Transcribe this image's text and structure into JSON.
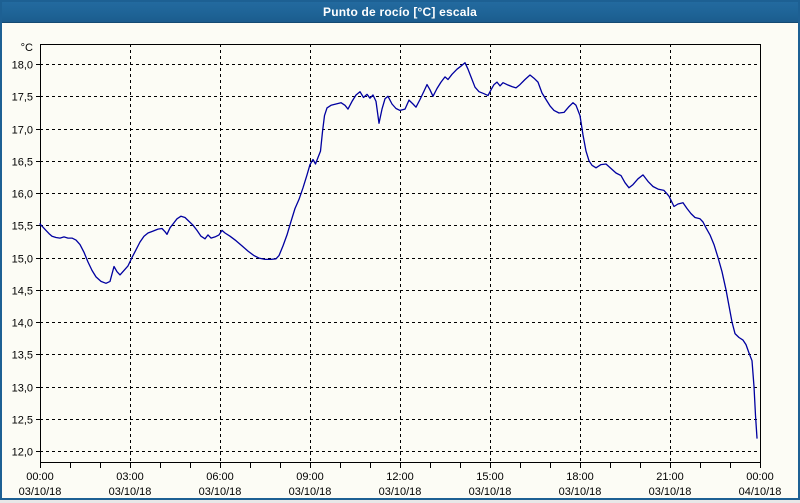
{
  "window": {
    "title": "Punto de rocío [°C] escala"
  },
  "colors": {
    "titlebar": "#1e6396",
    "frame": "#1d6093",
    "background": "#fcfcf5",
    "line": "#0000a0",
    "grid": "#000000",
    "text": "#000000"
  },
  "chart_data": {
    "type": "line",
    "title": "Punto de rocío [°C] escala",
    "ylabel": "°C",
    "ylim": [
      12.0,
      18.0
    ],
    "xlim_minutes": [
      0,
      1440
    ],
    "grid": true,
    "legend": "none",
    "yticks": [
      {
        "value": 18.0,
        "label": "18,0"
      },
      {
        "value": 17.5,
        "label": "17,5"
      },
      {
        "value": 17.0,
        "label": "17,0"
      },
      {
        "value": 16.5,
        "label": "16,5"
      },
      {
        "value": 16.0,
        "label": "16,0"
      },
      {
        "value": 15.5,
        "label": "15,5"
      },
      {
        "value": 15.0,
        "label": "15,0"
      },
      {
        "value": 14.5,
        "label": "14,5"
      },
      {
        "value": 14.0,
        "label": "14,0"
      },
      {
        "value": 13.5,
        "label": "13,5"
      },
      {
        "value": 13.0,
        "label": "13,0"
      },
      {
        "value": 12.5,
        "label": "12,5"
      },
      {
        "value": 12.0,
        "label": "12,0"
      }
    ],
    "xticks": [
      {
        "hour": 0,
        "time": "00:00",
        "date": "03/10/18"
      },
      {
        "hour": 3,
        "time": "03:00",
        "date": "03/10/18"
      },
      {
        "hour": 6,
        "time": "06:00",
        "date": "03/10/18"
      },
      {
        "hour": 9,
        "time": "09:00",
        "date": "03/10/18"
      },
      {
        "hour": 12,
        "time": "12:00",
        "date": "03/10/18"
      },
      {
        "hour": 15,
        "time": "15:00",
        "date": "03/10/18"
      },
      {
        "hour": 18,
        "time": "18:00",
        "date": "03/10/18"
      },
      {
        "hour": 21,
        "time": "21:00",
        "date": "03/10/18"
      },
      {
        "hour": 24,
        "time": "00:00",
        "date": "04/10/18"
      }
    ],
    "minor_tick_every_hours": 1,
    "series": [
      {
        "name": "Punto de rocío",
        "color": "#0000a0",
        "points": [
          [
            0,
            15.52
          ],
          [
            6,
            15.47
          ],
          [
            12,
            15.42
          ],
          [
            18,
            15.37
          ],
          [
            24,
            15.33
          ],
          [
            32,
            15.31
          ],
          [
            40,
            15.3
          ],
          [
            48,
            15.32
          ],
          [
            56,
            15.3
          ],
          [
            64,
            15.3
          ],
          [
            72,
            15.27
          ],
          [
            80,
            15.2
          ],
          [
            88,
            15.08
          ],
          [
            96,
            14.93
          ],
          [
            104,
            14.8
          ],
          [
            112,
            14.7
          ],
          [
            122,
            14.63
          ],
          [
            132,
            14.6
          ],
          [
            140,
            14.63
          ],
          [
            148,
            14.86
          ],
          [
            154,
            14.78
          ],
          [
            160,
            14.73
          ],
          [
            168,
            14.8
          ],
          [
            176,
            14.87
          ],
          [
            184,
            15.0
          ],
          [
            192,
            15.12
          ],
          [
            200,
            15.24
          ],
          [
            208,
            15.33
          ],
          [
            216,
            15.38
          ],
          [
            226,
            15.41
          ],
          [
            236,
            15.44
          ],
          [
            244,
            15.45
          ],
          [
            250,
            15.4
          ],
          [
            254,
            15.36
          ],
          [
            260,
            15.46
          ],
          [
            266,
            15.52
          ],
          [
            274,
            15.6
          ],
          [
            282,
            15.64
          ],
          [
            290,
            15.62
          ],
          [
            298,
            15.56
          ],
          [
            306,
            15.5
          ],
          [
            314,
            15.42
          ],
          [
            322,
            15.33
          ],
          [
            330,
            15.29
          ],
          [
            336,
            15.35
          ],
          [
            342,
            15.3
          ],
          [
            350,
            15.32
          ],
          [
            358,
            15.35
          ],
          [
            364,
            15.42
          ],
          [
            370,
            15.38
          ],
          [
            380,
            15.33
          ],
          [
            392,
            15.26
          ],
          [
            404,
            15.18
          ],
          [
            416,
            15.1
          ],
          [
            428,
            15.03
          ],
          [
            438,
            14.99
          ],
          [
            450,
            14.97
          ],
          [
            462,
            14.97
          ],
          [
            472,
            14.98
          ],
          [
            478,
            15.03
          ],
          [
            486,
            15.18
          ],
          [
            494,
            15.35
          ],
          [
            502,
            15.56
          ],
          [
            510,
            15.76
          ],
          [
            518,
            15.9
          ],
          [
            526,
            16.08
          ],
          [
            534,
            16.28
          ],
          [
            540,
            16.44
          ],
          [
            546,
            16.52
          ],
          [
            551,
            16.45
          ],
          [
            556,
            16.55
          ],
          [
            561,
            16.65
          ],
          [
            565,
            16.95
          ],
          [
            569,
            17.2
          ],
          [
            574,
            17.32
          ],
          [
            582,
            17.36
          ],
          [
            592,
            17.38
          ],
          [
            602,
            17.4
          ],
          [
            610,
            17.36
          ],
          [
            616,
            17.3
          ],
          [
            624,
            17.42
          ],
          [
            632,
            17.52
          ],
          [
            640,
            17.57
          ],
          [
            647,
            17.48
          ],
          [
            654,
            17.53
          ],
          [
            660,
            17.47
          ],
          [
            666,
            17.52
          ],
          [
            672,
            17.42
          ],
          [
            678,
            17.08
          ],
          [
            684,
            17.3
          ],
          [
            690,
            17.46
          ],
          [
            696,
            17.5
          ],
          [
            704,
            17.38
          ],
          [
            712,
            17.31
          ],
          [
            720,
            17.28
          ],
          [
            730,
            17.3
          ],
          [
            738,
            17.44
          ],
          [
            746,
            17.38
          ],
          [
            752,
            17.33
          ],
          [
            760,
            17.45
          ],
          [
            768,
            17.58
          ],
          [
            774,
            17.68
          ],
          [
            780,
            17.6
          ],
          [
            786,
            17.5
          ],
          [
            794,
            17.62
          ],
          [
            802,
            17.72
          ],
          [
            810,
            17.8
          ],
          [
            816,
            17.76
          ],
          [
            824,
            17.84
          ],
          [
            834,
            17.92
          ],
          [
            844,
            17.98
          ],
          [
            850,
            18.02
          ],
          [
            856,
            17.92
          ],
          [
            862,
            17.8
          ],
          [
            870,
            17.64
          ],
          [
            878,
            17.57
          ],
          [
            888,
            17.54
          ],
          [
            896,
            17.51
          ],
          [
            902,
            17.6
          ],
          [
            908,
            17.68
          ],
          [
            914,
            17.72
          ],
          [
            920,
            17.66
          ],
          [
            926,
            17.71
          ],
          [
            934,
            17.68
          ],
          [
            944,
            17.65
          ],
          [
            952,
            17.63
          ],
          [
            960,
            17.68
          ],
          [
            970,
            17.76
          ],
          [
            980,
            17.83
          ],
          [
            988,
            17.78
          ],
          [
            996,
            17.72
          ],
          [
            1004,
            17.55
          ],
          [
            1012,
            17.45
          ],
          [
            1020,
            17.35
          ],
          [
            1028,
            17.28
          ],
          [
            1038,
            17.24
          ],
          [
            1048,
            17.25
          ],
          [
            1058,
            17.34
          ],
          [
            1066,
            17.4
          ],
          [
            1072,
            17.36
          ],
          [
            1080,
            17.2
          ],
          [
            1086,
            16.9
          ],
          [
            1092,
            16.65
          ],
          [
            1098,
            16.5
          ],
          [
            1104,
            16.43
          ],
          [
            1112,
            16.39
          ],
          [
            1122,
            16.44
          ],
          [
            1132,
            16.45
          ],
          [
            1142,
            16.38
          ],
          [
            1152,
            16.31
          ],
          [
            1162,
            16.27
          ],
          [
            1170,
            16.16
          ],
          [
            1178,
            16.08
          ],
          [
            1186,
            16.13
          ],
          [
            1196,
            16.22
          ],
          [
            1206,
            16.28
          ],
          [
            1216,
            16.18
          ],
          [
            1226,
            16.1
          ],
          [
            1236,
            16.06
          ],
          [
            1248,
            16.04
          ],
          [
            1258,
            15.95
          ],
          [
            1268,
            15.79
          ],
          [
            1276,
            15.83
          ],
          [
            1286,
            15.85
          ],
          [
            1294,
            15.76
          ],
          [
            1302,
            15.68
          ],
          [
            1310,
            15.62
          ],
          [
            1320,
            15.6
          ],
          [
            1326,
            15.55
          ],
          [
            1332,
            15.46
          ],
          [
            1340,
            15.35
          ],
          [
            1348,
            15.2
          ],
          [
            1356,
            15.0
          ],
          [
            1364,
            14.78
          ],
          [
            1372,
            14.5
          ],
          [
            1378,
            14.25
          ],
          [
            1384,
            14.0
          ],
          [
            1390,
            13.82
          ],
          [
            1398,
            13.76
          ],
          [
            1406,
            13.72
          ],
          [
            1412,
            13.65
          ],
          [
            1418,
            13.52
          ],
          [
            1424,
            13.4
          ],
          [
            1428,
            13.0
          ],
          [
            1431,
            12.55
          ],
          [
            1434,
            12.2
          ]
        ]
      }
    ]
  }
}
